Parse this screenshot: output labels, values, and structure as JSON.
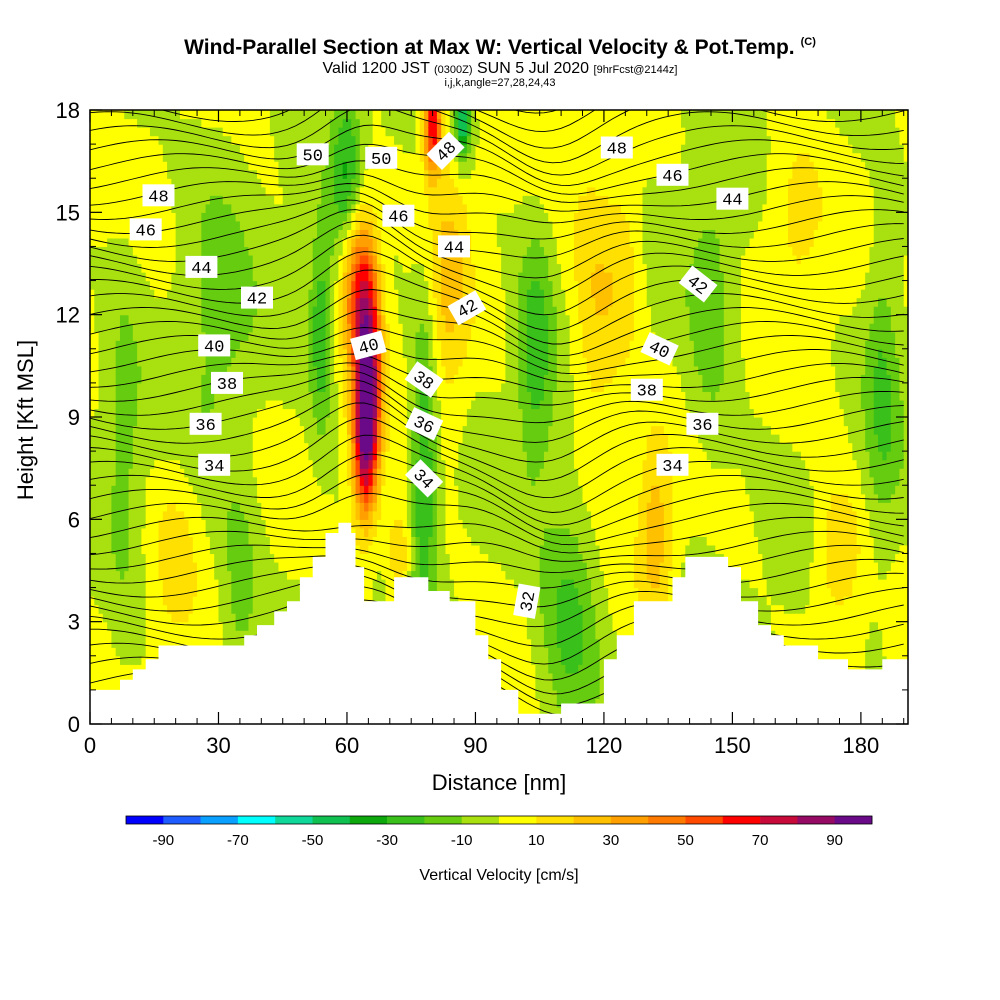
{
  "titles": {
    "main": "Wind-Parallel Section at Max W: Vertical Velocity & Pot.Temp.",
    "copyright": "(C)",
    "valid_prefix": "Valid 1200 JST",
    "valid_utc": "(0300Z)",
    "valid_date": "SUN 5 Jul 2020",
    "forecast": "[9hrFcst@2144z]",
    "indices": "i,j,k,angle=27,28,24,43"
  },
  "chart_data": {
    "type": "heatmap",
    "xlabel": "Distance [nm]",
    "ylabel": "Height [Kft MSL]",
    "xlim": [
      0,
      191
    ],
    "ylim": [
      0,
      18
    ],
    "x_ticks": [
      "0",
      "30",
      "60",
      "90",
      "120",
      "150",
      "180"
    ],
    "y_ticks": [
      "0",
      "3",
      "6",
      "9",
      "12",
      "15",
      "18"
    ],
    "colorbar": {
      "label": "Vertical Velocity [cm/s]",
      "tick_labels": [
        "-90",
        "-70",
        "-50",
        "-30",
        "-10",
        "10",
        "30",
        "50",
        "70",
        "90"
      ],
      "bins": [
        -100,
        -90,
        -80,
        -70,
        -60,
        -50,
        -40,
        -30,
        -20,
        -10,
        0,
        10,
        20,
        30,
        40,
        50,
        60,
        70,
        80,
        90,
        100
      ],
      "colors": [
        "#0000ff",
        "#1e5cff",
        "#0aa0ff",
        "#00ffff",
        "#10d89a",
        "#10c050",
        "#0ca80c",
        "#3ac01a",
        "#66cc10",
        "#a8e010",
        "#ffff00",
        "#ffe000",
        "#ffc000",
        "#ffa000",
        "#ff7a00",
        "#ff4a00",
        "#ff0000",
        "#c80a3a",
        "#960a66",
        "#6a0a88"
      ]
    },
    "terrain": [
      [
        0,
        1.0
      ],
      [
        7,
        1.0
      ],
      [
        7,
        1.3
      ],
      [
        10,
        1.3
      ],
      [
        10,
        1.6
      ],
      [
        13,
        1.6
      ],
      [
        13,
        1.9
      ],
      [
        16,
        1.9
      ],
      [
        16,
        2.3
      ],
      [
        36,
        2.3
      ],
      [
        36,
        2.6
      ],
      [
        39,
        2.6
      ],
      [
        39,
        2.9
      ],
      [
        43,
        2.9
      ],
      [
        43,
        3.3
      ],
      [
        46,
        3.3
      ],
      [
        46,
        3.6
      ],
      [
        49,
        3.6
      ],
      [
        49,
        4.3
      ],
      [
        52,
        4.3
      ],
      [
        52,
        4.9
      ],
      [
        55,
        4.9
      ],
      [
        55,
        5.6
      ],
      [
        58,
        5.6
      ],
      [
        58,
        5.9
      ],
      [
        61,
        5.9
      ],
      [
        61,
        5.6
      ],
      [
        62,
        5.6
      ],
      [
        62,
        4.6
      ],
      [
        64,
        4.6
      ],
      [
        64,
        3.6
      ],
      [
        71,
        3.6
      ],
      [
        71,
        4.3
      ],
      [
        79,
        4.3
      ],
      [
        79,
        3.9
      ],
      [
        84,
        3.9
      ],
      [
        84,
        3.6
      ],
      [
        90,
        3.6
      ],
      [
        90,
        2.6
      ],
      [
        93,
        2.6
      ],
      [
        93,
        1.9
      ],
      [
        96,
        1.9
      ],
      [
        96,
        1.0
      ],
      [
        100,
        1.0
      ],
      [
        100,
        0.3
      ],
      [
        110,
        0.3
      ],
      [
        110,
        0.6
      ],
      [
        120,
        0.6
      ],
      [
        120,
        1.9
      ],
      [
        123,
        1.9
      ],
      [
        123,
        2.6
      ],
      [
        127,
        2.6
      ],
      [
        127,
        3.6
      ],
      [
        136,
        3.6
      ],
      [
        136,
        4.3
      ],
      [
        139,
        4.3
      ],
      [
        139,
        4.9
      ],
      [
        149,
        4.9
      ],
      [
        149,
        4.6
      ],
      [
        152,
        4.6
      ],
      [
        152,
        3.6
      ],
      [
        156,
        3.6
      ],
      [
        156,
        2.9
      ],
      [
        159,
        2.9
      ],
      [
        159,
        2.6
      ],
      [
        162,
        2.6
      ],
      [
        162,
        2.3
      ],
      [
        170,
        2.3
      ],
      [
        170,
        1.9
      ],
      [
        177,
        1.9
      ],
      [
        177,
        1.6
      ],
      [
        185,
        1.6
      ],
      [
        185,
        1.9
      ],
      [
        191,
        1.9
      ],
      [
        191,
        0
      ],
      [
        0,
        0
      ]
    ],
    "velocity_features": [
      {
        "x": 65,
        "y": 10.5,
        "sx": 2.2,
        "sy": 2.4,
        "w": 80
      },
      {
        "x": 64,
        "y": 8.2,
        "sx": 2.0,
        "sy": 1.6,
        "w": 55
      },
      {
        "x": 62,
        "y": 13.0,
        "sx": 2.5,
        "sy": 1.6,
        "w": 45
      },
      {
        "x": 80,
        "y": 17.6,
        "sx": 1.5,
        "sy": 1.0,
        "w": 70
      },
      {
        "x": 87,
        "y": 17.6,
        "sx": 1.2,
        "sy": 0.8,
        "w": -50
      },
      {
        "x": 84,
        "y": 13.0,
        "sx": 3.5,
        "sy": 3.0,
        "w": 20
      },
      {
        "x": 54,
        "y": 11.5,
        "sx": 2.0,
        "sy": 2.0,
        "w": -30
      },
      {
        "x": 78,
        "y": 7.5,
        "sx": 2.0,
        "sy": 3.5,
        "w": -30
      },
      {
        "x": 72,
        "y": 5.0,
        "sx": 2.0,
        "sy": 1.0,
        "w": 25
      },
      {
        "x": 60,
        "y": 16.0,
        "sx": 2.5,
        "sy": 1.8,
        "w": -30
      },
      {
        "x": 104,
        "y": 11.0,
        "sx": 3.0,
        "sy": 2.5,
        "w": -25
      },
      {
        "x": 112,
        "y": 3.0,
        "sx": 5.0,
        "sy": 2.5,
        "w": -25
      },
      {
        "x": 118,
        "y": 12.0,
        "sx": 4.0,
        "sy": 3.0,
        "w": 20
      },
      {
        "x": 132,
        "y": 5.5,
        "sx": 3.0,
        "sy": 2.0,
        "w": 25
      },
      {
        "x": 125,
        "y": 13.5,
        "sx": 3.0,
        "sy": 2.0,
        "w": 15
      },
      {
        "x": 145,
        "y": 12.0,
        "sx": 4.0,
        "sy": 3.0,
        "w": -15
      },
      {
        "x": 175,
        "y": 5.0,
        "sx": 4.0,
        "sy": 1.5,
        "w": 22
      },
      {
        "x": 185,
        "y": 10.0,
        "sx": 3.0,
        "sy": 3.0,
        "w": -20
      },
      {
        "x": 20,
        "y": 5.0,
        "sx": 4.0,
        "sy": 2.0,
        "w": 12
      },
      {
        "x": 35,
        "y": 4.0,
        "sx": 3.0,
        "sy": 2.0,
        "w": -15
      },
      {
        "x": 8,
        "y": 8.0,
        "sx": 3.0,
        "sy": 4.0,
        "w": -12
      },
      {
        "x": 30,
        "y": 12.0,
        "sx": 6.0,
        "sy": 4.0,
        "w": -12
      },
      {
        "x": 165,
        "y": 15.0,
        "sx": 5.0,
        "sy": 2.0,
        "w": 14
      }
    ],
    "contour_labels": [
      {
        "text": "50",
        "x": 52,
        "y": 16.7,
        "rot": 0
      },
      {
        "text": "50",
        "x": 68,
        "y": 16.6,
        "rot": 0
      },
      {
        "text": "48",
        "x": 83,
        "y": 16.8,
        "rot": -45
      },
      {
        "text": "48",
        "x": 123,
        "y": 16.9,
        "rot": 0
      },
      {
        "text": "48",
        "x": 16,
        "y": 15.5,
        "rot": 0
      },
      {
        "text": "46",
        "x": 13,
        "y": 14.5,
        "rot": 0
      },
      {
        "text": "46",
        "x": 72,
        "y": 14.9,
        "rot": 0
      },
      {
        "text": "46",
        "x": 136,
        "y": 16.1,
        "rot": 0
      },
      {
        "text": "44",
        "x": 26,
        "y": 13.4,
        "rot": 0
      },
      {
        "text": "44",
        "x": 85,
        "y": 14.0,
        "rot": 0
      },
      {
        "text": "44",
        "x": 150,
        "y": 15.4,
        "rot": 0
      },
      {
        "text": "42",
        "x": 39,
        "y": 12.5,
        "rot": 0
      },
      {
        "text": "42",
        "x": 88,
        "y": 12.2,
        "rot": -30
      },
      {
        "text": "42",
        "x": 142,
        "y": 12.9,
        "rot": 38
      },
      {
        "text": "40",
        "x": 29,
        "y": 11.1,
        "rot": 0
      },
      {
        "text": "40",
        "x": 65,
        "y": 11.1,
        "rot": -15
      },
      {
        "text": "40",
        "x": 133,
        "y": 11.0,
        "rot": 25
      },
      {
        "text": "38",
        "x": 32,
        "y": 10.0,
        "rot": 0
      },
      {
        "text": "38",
        "x": 78,
        "y": 10.1,
        "rot": 35
      },
      {
        "text": "38",
        "x": 130,
        "y": 9.8,
        "rot": 0
      },
      {
        "text": "36",
        "x": 27,
        "y": 8.8,
        "rot": 0
      },
      {
        "text": "36",
        "x": 78,
        "y": 8.8,
        "rot": 25
      },
      {
        "text": "36",
        "x": 143,
        "y": 8.8,
        "rot": 0
      },
      {
        "text": "34",
        "x": 29,
        "y": 7.6,
        "rot": 0
      },
      {
        "text": "34",
        "x": 78,
        "y": 7.2,
        "rot": 45
      },
      {
        "text": "34",
        "x": 136,
        "y": 7.6,
        "rot": 0
      },
      {
        "text": "32",
        "x": 102,
        "y": 3.6,
        "rot": -80
      }
    ]
  }
}
